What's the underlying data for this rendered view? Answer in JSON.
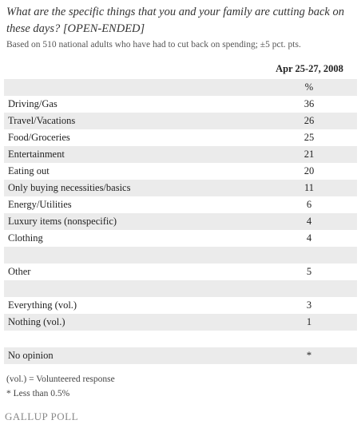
{
  "header": {
    "title": "What are the specific things that you and your family are cutting back on these days? [OPEN-ENDED]",
    "subtitle": "Based on 510 national adults who have had to cut back on spending; ±5 pct. pts."
  },
  "table": {
    "column_header": "Apr 25-27, 2008",
    "unit": "%",
    "groups": [
      [
        [
          "Driving/Gas",
          36
        ],
        [
          "Travel/Vacations",
          26
        ],
        [
          "Food/Groceries",
          25
        ],
        [
          "Entertainment",
          21
        ],
        [
          "Eating out",
          20
        ],
        [
          "Only buying necessities/basics",
          11
        ],
        [
          "Energy/Utilities",
          6
        ],
        [
          "Luxury items (nonspecific)",
          4
        ],
        [
          "Clothing",
          4
        ]
      ],
      [
        [
          "Other",
          5
        ]
      ],
      [
        [
          "Everything (vol.)",
          3
        ],
        [
          "Nothing (vol.)",
          1
        ]
      ],
      [
        [
          "No opinion",
          "*"
        ]
      ]
    ]
  },
  "footnotes": [
    "(vol.) = Volunteered response",
    "* Less than 0.5%"
  ],
  "source": "GALLUP POLL"
}
